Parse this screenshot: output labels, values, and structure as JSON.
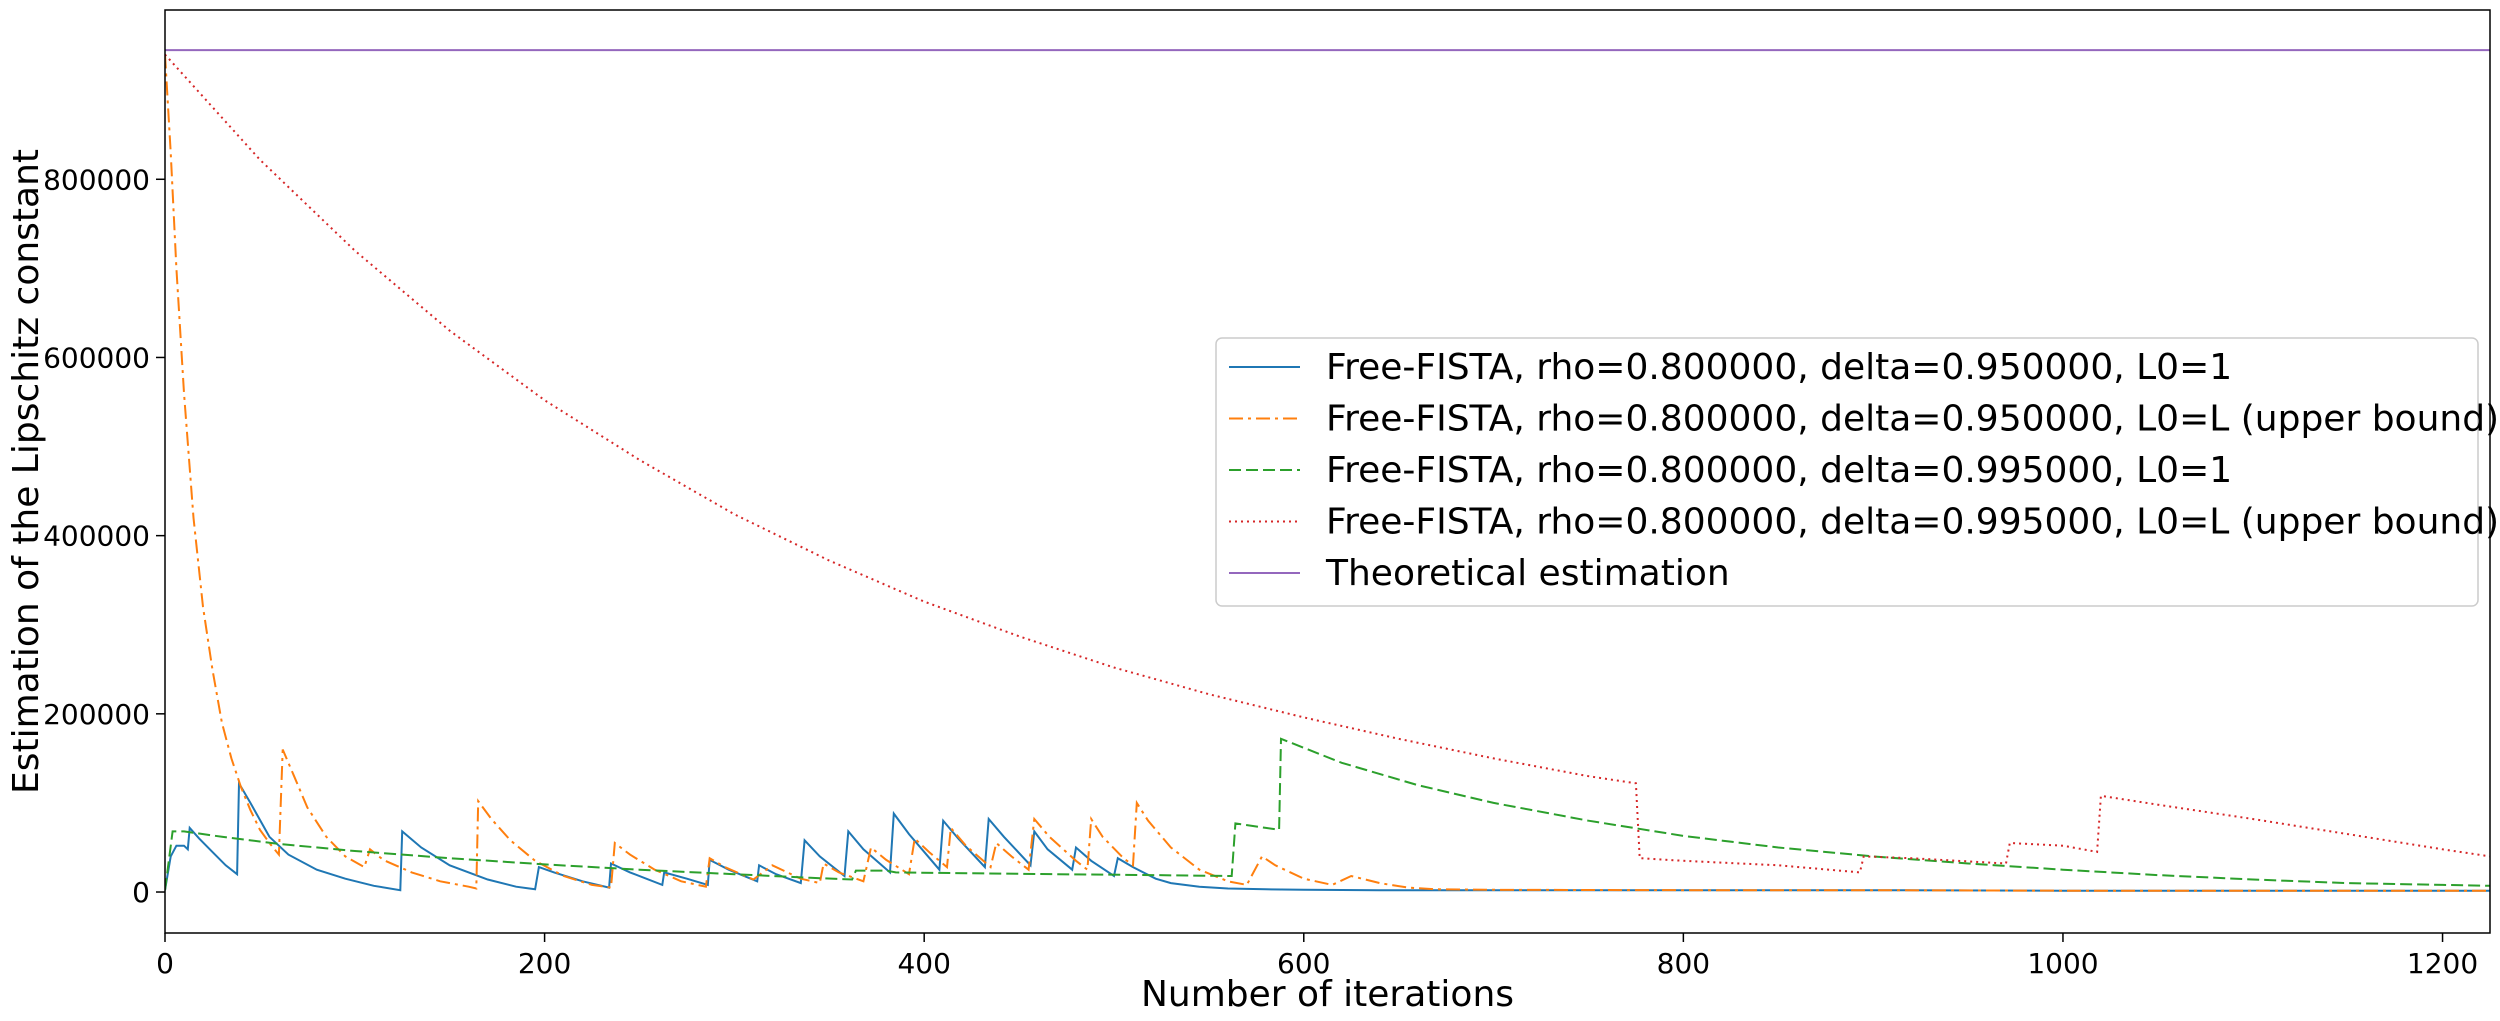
{
  "chart_data": {
    "type": "line",
    "title": "",
    "xlabel": "Number of iterations",
    "ylabel": "Estimation of the Lipschitz constant",
    "xlim": [
      0,
      1225
    ],
    "ylim": [
      -46000,
      990000
    ],
    "x_ticks": [
      0,
      200,
      400,
      600,
      800,
      1000,
      1200
    ],
    "y_ticks": [
      0,
      200000,
      400000,
      600000,
      800000
    ],
    "grid": false,
    "legend_position": "center-right",
    "series": [
      {
        "name": "Free-FISTA, rho=0.800000, delta=0.950000, L0=1",
        "color": "#1f77b4",
        "dash": "solid",
        "points": [
          [
            0,
            2000
          ],
          [
            3,
            40000
          ],
          [
            6,
            52000
          ],
          [
            10,
            52000
          ],
          [
            12,
            48000
          ],
          [
            13,
            72000
          ],
          [
            18,
            60000
          ],
          [
            25,
            45000
          ],
          [
            32,
            30000
          ],
          [
            38,
            20000
          ],
          [
            39,
            122000
          ],
          [
            45,
            100000
          ],
          [
            55,
            62000
          ],
          [
            65,
            42000
          ],
          [
            80,
            25000
          ],
          [
            95,
            15000
          ],
          [
            110,
            7000
          ],
          [
            124,
            2000
          ],
          [
            125,
            68000
          ],
          [
            135,
            50000
          ],
          [
            150,
            30000
          ],
          [
            170,
            14000
          ],
          [
            185,
            6000
          ],
          [
            195,
            3000
          ],
          [
            197,
            28000
          ],
          [
            205,
            22000
          ],
          [
            220,
            12000
          ],
          [
            234,
            5000
          ],
          [
            235,
            32000
          ],
          [
            245,
            22000
          ],
          [
            262,
            8000
          ],
          [
            263,
            22000
          ],
          [
            275,
            15000
          ],
          [
            286,
            8000
          ],
          [
            287,
            36000
          ],
          [
            297,
            25000
          ],
          [
            312,
            12000
          ],
          [
            313,
            30000
          ],
          [
            322,
            20000
          ],
          [
            335,
            10000
          ],
          [
            337,
            58000
          ],
          [
            345,
            40000
          ],
          [
            358,
            18000
          ],
          [
            360,
            68000
          ],
          [
            368,
            48000
          ],
          [
            382,
            22000
          ],
          [
            384,
            88000
          ],
          [
            392,
            65000
          ],
          [
            404,
            35000
          ],
          [
            408,
            25000
          ],
          [
            410,
            80000
          ],
          [
            418,
            60000
          ],
          [
            432,
            28000
          ],
          [
            434,
            82000
          ],
          [
            442,
            62000
          ],
          [
            456,
            30000
          ],
          [
            458,
            68000
          ],
          [
            465,
            48000
          ],
          [
            478,
            25000
          ],
          [
            480,
            50000
          ],
          [
            488,
            35000
          ],
          [
            500,
            18000
          ],
          [
            502,
            38000
          ],
          [
            510,
            28000
          ],
          [
            522,
            15000
          ],
          [
            530,
            10000
          ],
          [
            545,
            6000
          ],
          [
            560,
            4000
          ],
          [
            580,
            3000
          ],
          [
            600,
            2500
          ],
          [
            640,
            2000
          ],
          [
            700,
            2000
          ],
          [
            800,
            2000
          ],
          [
            900,
            2000
          ],
          [
            1000,
            1500
          ],
          [
            1100,
            1500
          ],
          [
            1225,
            1500
          ]
        ]
      },
      {
        "name": "Free-FISTA, rho=0.800000, delta=0.950000, L0=L (upper bound)",
        "color": "#ff7f0e",
        "dash": "dashdot",
        "points": [
          [
            0,
            940000
          ],
          [
            3,
            830000
          ],
          [
            6,
            700000
          ],
          [
            10,
            560000
          ],
          [
            15,
            420000
          ],
          [
            20,
            320000
          ],
          [
            25,
            250000
          ],
          [
            30,
            190000
          ],
          [
            35,
            150000
          ],
          [
            40,
            118000
          ],
          [
            45,
            92000
          ],
          [
            50,
            70000
          ],
          [
            55,
            55000
          ],
          [
            60,
            42000
          ],
          [
            62,
            160000
          ],
          [
            68,
            130000
          ],
          [
            75,
            95000
          ],
          [
            85,
            62000
          ],
          [
            95,
            40000
          ],
          [
            105,
            28000
          ],
          [
            108,
            48000
          ],
          [
            115,
            36000
          ],
          [
            130,
            22000
          ],
          [
            145,
            12000
          ],
          [
            160,
            6000
          ],
          [
            164,
            4000
          ],
          [
            165,
            102000
          ],
          [
            172,
            82000
          ],
          [
            182,
            58000
          ],
          [
            195,
            35000
          ],
          [
            210,
            18000
          ],
          [
            225,
            8000
          ],
          [
            235,
            5000
          ],
          [
            237,
            55000
          ],
          [
            245,
            42000
          ],
          [
            258,
            25000
          ],
          [
            272,
            12000
          ],
          [
            285,
            6000
          ],
          [
            287,
            38000
          ],
          [
            295,
            28000
          ],
          [
            310,
            14000
          ],
          [
            320,
            30000
          ],
          [
            335,
            15000
          ],
          [
            345,
            10000
          ],
          [
            347,
            32000
          ],
          [
            355,
            22000
          ],
          [
            368,
            12000
          ],
          [
            372,
            50000
          ],
          [
            380,
            36000
          ],
          [
            392,
            20000
          ],
          [
            395,
            60000
          ],
          [
            403,
            44000
          ],
          [
            412,
            28000
          ],
          [
            414,
            72000
          ],
          [
            422,
            52000
          ],
          [
            435,
            28000
          ],
          [
            438,
            55000
          ],
          [
            446,
            40000
          ],
          [
            455,
            25000
          ],
          [
            458,
            82000
          ],
          [
            466,
            62000
          ],
          [
            480,
            35000
          ],
          [
            486,
            25000
          ],
          [
            488,
            82000
          ],
          [
            494,
            62000
          ],
          [
            505,
            38000
          ],
          [
            510,
            30000
          ],
          [
            512,
            100000
          ],
          [
            518,
            80000
          ],
          [
            530,
            50000
          ],
          [
            545,
            25000
          ],
          [
            560,
            12000
          ],
          [
            570,
            8000
          ],
          [
            578,
            40000
          ],
          [
            585,
            30000
          ],
          [
            600,
            15000
          ],
          [
            615,
            8000
          ],
          [
            625,
            18000
          ],
          [
            640,
            10000
          ],
          [
            655,
            5000
          ],
          [
            670,
            3000
          ],
          [
            700,
            2500
          ],
          [
            800,
            2000
          ],
          [
            900,
            2000
          ],
          [
            1000,
            1500
          ],
          [
            1100,
            1500
          ],
          [
            1225,
            1500
          ]
        ]
      },
      {
        "name": "Free-FISTA, rho=0.800000, delta=0.995000, L0=1",
        "color": "#2ca02c",
        "dash": "dashed",
        "points": [
          [
            0,
            2000
          ],
          [
            4,
            68000
          ],
          [
            10,
            68000
          ],
          [
            30,
            62000
          ],
          [
            60,
            54000
          ],
          [
            100,
            46000
          ],
          [
            150,
            38000
          ],
          [
            200,
            31000
          ],
          [
            250,
            25000
          ],
          [
            300,
            20000
          ],
          [
            340,
            16000
          ],
          [
            362,
            14000
          ],
          [
            364,
            24000
          ],
          [
            380,
            24000
          ],
          [
            385,
            22000
          ],
          [
            425,
            21000
          ],
          [
            470,
            20000
          ],
          [
            520,
            19000
          ],
          [
            562,
            18000
          ],
          [
            564,
            77000
          ],
          [
            580,
            72000
          ],
          [
            587,
            70000
          ],
          [
            588,
            172000
          ],
          [
            620,
            145000
          ],
          [
            660,
            120000
          ],
          [
            700,
            100000
          ],
          [
            750,
            80000
          ],
          [
            800,
            63000
          ],
          [
            850,
            50000
          ],
          [
            900,
            40000
          ],
          [
            950,
            32000
          ],
          [
            1000,
            25000
          ],
          [
            1050,
            19000
          ],
          [
            1100,
            14000
          ],
          [
            1150,
            10000
          ],
          [
            1200,
            8000
          ],
          [
            1225,
            7000
          ]
        ]
      },
      {
        "name": "Free-FISTA, rho=0.800000, delta=0.995000, L0=L (upper bound)",
        "color": "#d62728",
        "dash": "dotted",
        "points": [
          [
            0,
            940000
          ],
          [
            50,
            822000
          ],
          [
            100,
            720000
          ],
          [
            150,
            630000
          ],
          [
            200,
            552000
          ],
          [
            250,
            485000
          ],
          [
            300,
            424000
          ],
          [
            350,
            372000
          ],
          [
            400,
            326000
          ],
          [
            450,
            287000
          ],
          [
            500,
            252000
          ],
          [
            550,
            222000
          ],
          [
            600,
            196000
          ],
          [
            650,
            172000
          ],
          [
            700,
            150000
          ],
          [
            750,
            130000
          ],
          [
            775,
            122000
          ],
          [
            777,
            38000
          ],
          [
            800,
            35000
          ],
          [
            850,
            30000
          ],
          [
            893,
            22000
          ],
          [
            895,
            40000
          ],
          [
            920,
            38000
          ],
          [
            970,
            32000
          ],
          [
            972,
            55000
          ],
          [
            1000,
            52000
          ],
          [
            1018,
            45000
          ],
          [
            1020,
            108000
          ],
          [
            1050,
            98000
          ],
          [
            1100,
            82000
          ],
          [
            1150,
            65000
          ],
          [
            1200,
            48000
          ],
          [
            1225,
            40000
          ]
        ]
      },
      {
        "name": "Theoretical estimation",
        "color": "#9467bd",
        "dash": "solid",
        "points": [
          [
            0,
            945000
          ],
          [
            1225,
            945000
          ]
        ]
      }
    ]
  }
}
